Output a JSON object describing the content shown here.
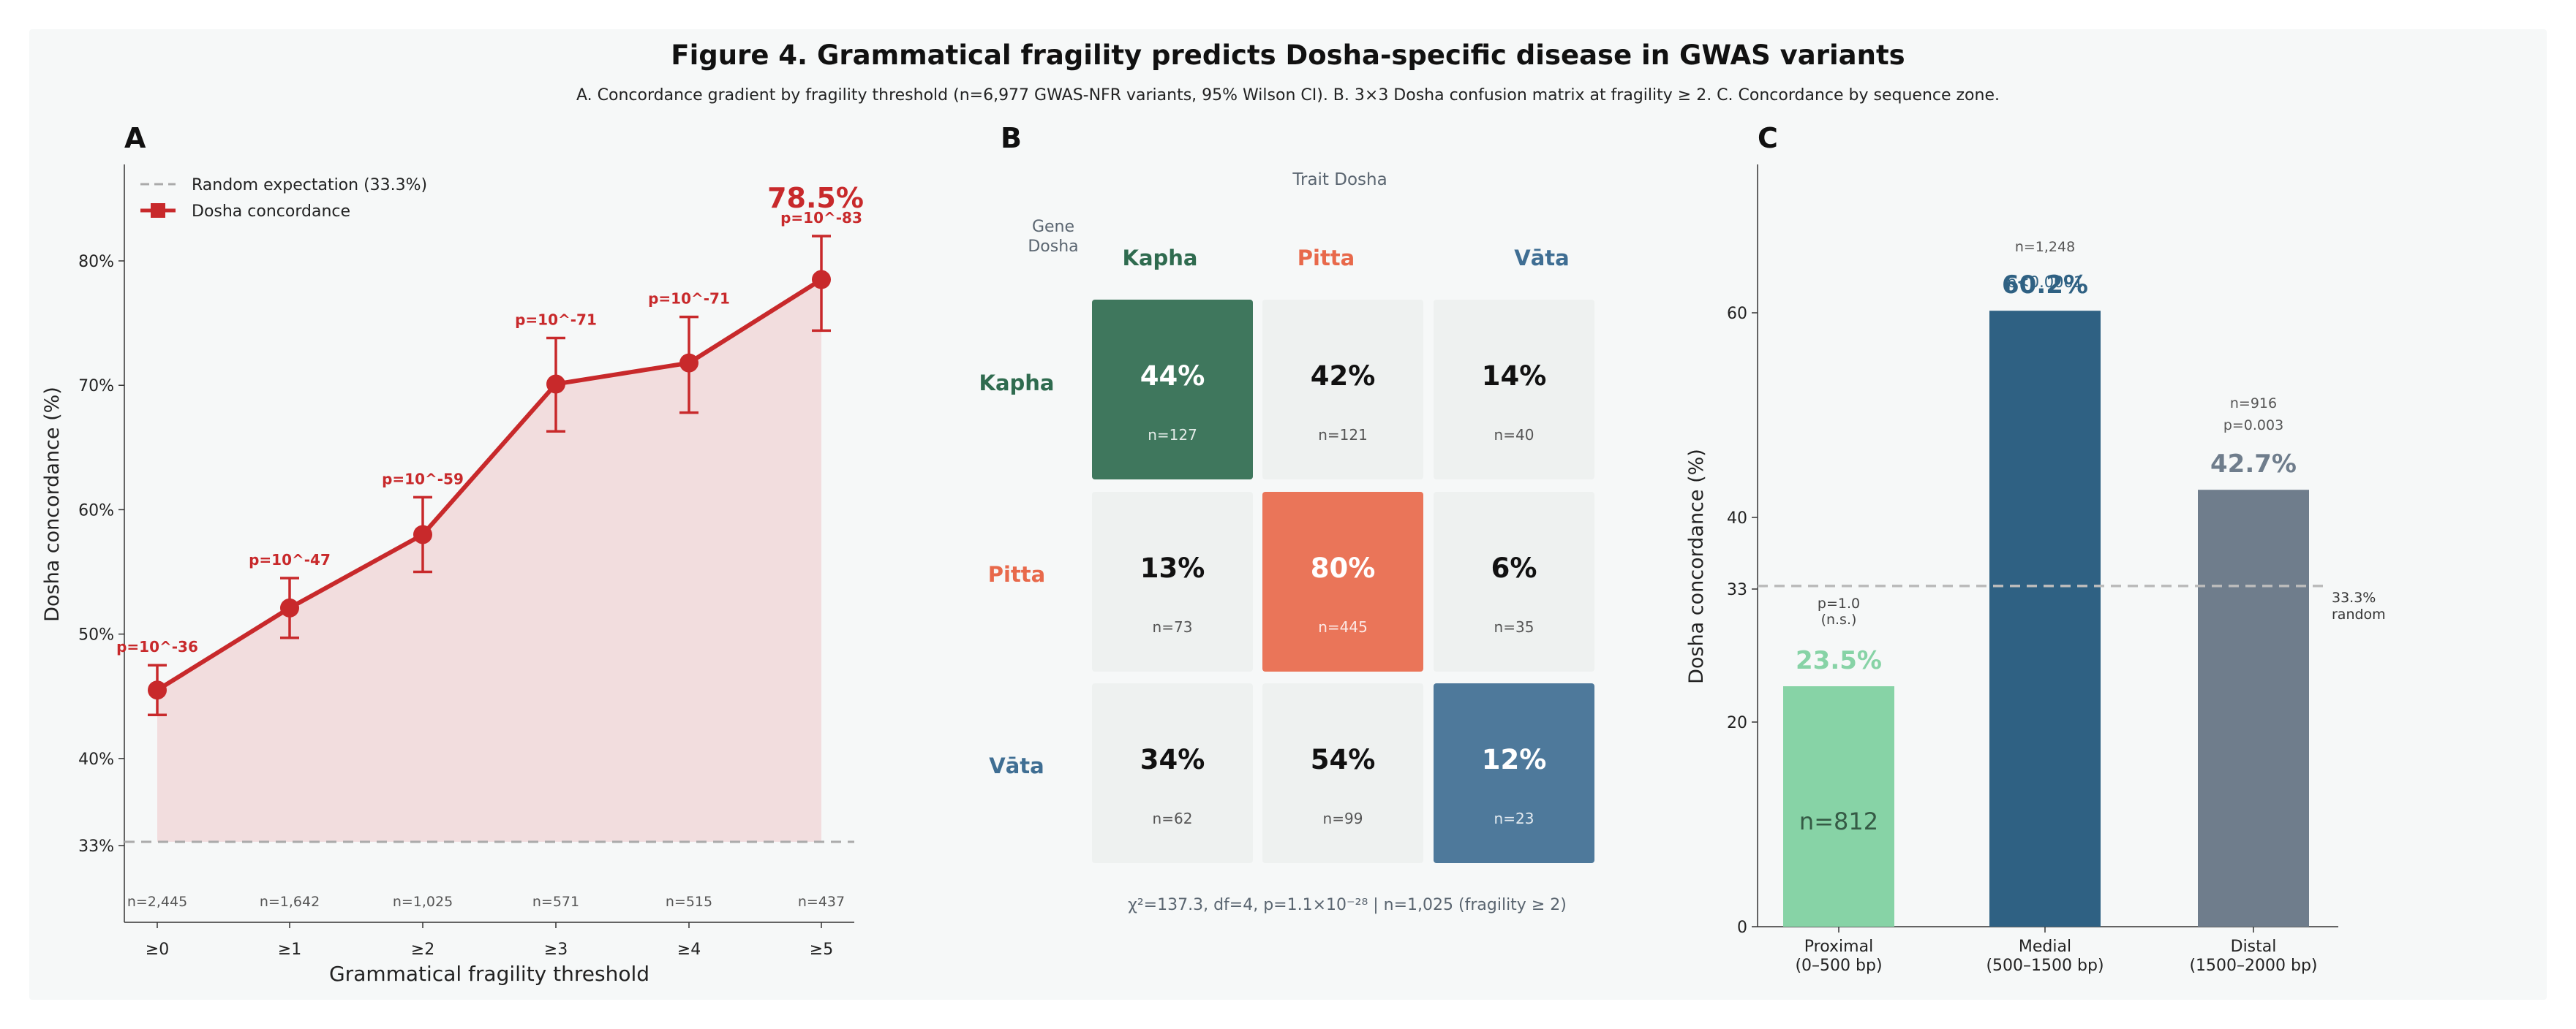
{
  "figure": {
    "title": "Figure 4.  Grammatical fragility predicts Dosha-specific disease in GWAS variants",
    "subtitle": "A. Concordance gradient by fragility threshold (n=6,977 GWAS-NFR variants, 95% Wilson CI).  B. 3×3 Dosha confusion matrix at fragility ≥ 2.  C. Concordance by sequence zone."
  },
  "colors": {
    "red": "#c8292b",
    "red_fill": "#f0d4d6",
    "kapha": "#2f6b4f",
    "pitta": "#e8694b",
    "vata": "#3f6e93",
    "proximal_bar": "#87d3a6",
    "medial_bar": "#2f6183",
    "distal_bar": "#6f7d8c",
    "neutral_cell": "#eef1f0",
    "muted_text": "#5a6570"
  },
  "chart_data": [
    {
      "panel": "A",
      "type": "line",
      "xlabel": "Grammatical fragility threshold",
      "ylabel": "Dosha concordance (%)",
      "categories": [
        "≥0",
        "≥1",
        "≥2",
        "≥3",
        "≥4",
        "≥5"
      ],
      "ylim": [
        30,
        87
      ],
      "yticks": [
        33,
        40,
        50,
        60,
        70,
        80
      ],
      "ytick_labels": [
        "33%",
        "40%",
        "50%",
        "60%",
        "70%",
        "80%"
      ],
      "series": [
        {
          "name": "Dosha concordance",
          "values": [
            45.5,
            52.1,
            58.0,
            70.1,
            71.8,
            78.5
          ],
          "ci_low": [
            43.5,
            49.7,
            55.0,
            66.3,
            67.8,
            74.4
          ],
          "ci_high": [
            47.5,
            54.5,
            61.0,
            73.8,
            75.5,
            82.0
          ]
        }
      ],
      "pvalue_labels": [
        "p=10^-36",
        "p=10^-47",
        "p=10^-59",
        "p=10^-71",
        "p=10^-71",
        "p=10^-83"
      ],
      "n_labels": [
        "n=2,445",
        "n=1,642",
        "n=1,025",
        "n=571",
        "n=515",
        "n=437"
      ],
      "highlight_label": "78.5%",
      "reference_line": {
        "value": 33.3,
        "label": "Random expectation (33.3%)"
      },
      "legend": [
        "Random expectation (33.3%)",
        "Dosha concordance"
      ],
      "legend_position": "top-left",
      "grid": false
    },
    {
      "panel": "B",
      "type": "heatmap",
      "col_title": "Trait Dosha",
      "row_title": "Gene\nDosha",
      "rows": [
        "Kapha",
        "Pitta",
        "Vāta"
      ],
      "cols": [
        "Kapha",
        "Pitta",
        "Vāta"
      ],
      "percent": [
        [
          44,
          42,
          14
        ],
        [
          13,
          80,
          6
        ],
        [
          34,
          54,
          12
        ]
      ],
      "percent_labels": [
        [
          "44%",
          "42%",
          "14%"
        ],
        [
          "13%",
          "80%",
          "6%"
        ],
        [
          "34%",
          "54%",
          "12%"
        ]
      ],
      "counts": [
        [
          "n=127",
          "n=121",
          "n=40"
        ],
        [
          "n=73",
          "n=445",
          "n=35"
        ],
        [
          "n=62",
          "n=99",
          "n=23"
        ]
      ],
      "footer": "χ²=137.3, df=4, p=1.1×10⁻²⁸  |  n=1,025 (fragility ≥ 2)"
    },
    {
      "panel": "C",
      "type": "bar",
      "ylabel": "Dosha concordance (%)",
      "categories": [
        "Proximal\n(0–500 bp)",
        "Medial\n(500–1500 bp)",
        "Distal\n(1500–2000 bp)"
      ],
      "values": [
        23.5,
        60.2,
        42.7
      ],
      "value_labels": [
        "23.5%",
        "60.2%",
        "42.7%"
      ],
      "n_labels": [
        "n=812",
        "n=1,248",
        "n=916"
      ],
      "p_labels": [
        "p=1.0\n(n.s.)",
        "p<0.0001",
        "p=0.003"
      ],
      "ylim": [
        0,
        70
      ],
      "yticks": [
        0,
        20,
        33,
        40,
        60
      ],
      "reference_line": {
        "value": 33.3,
        "label": "33.3%\nrandom"
      }
    }
  ]
}
